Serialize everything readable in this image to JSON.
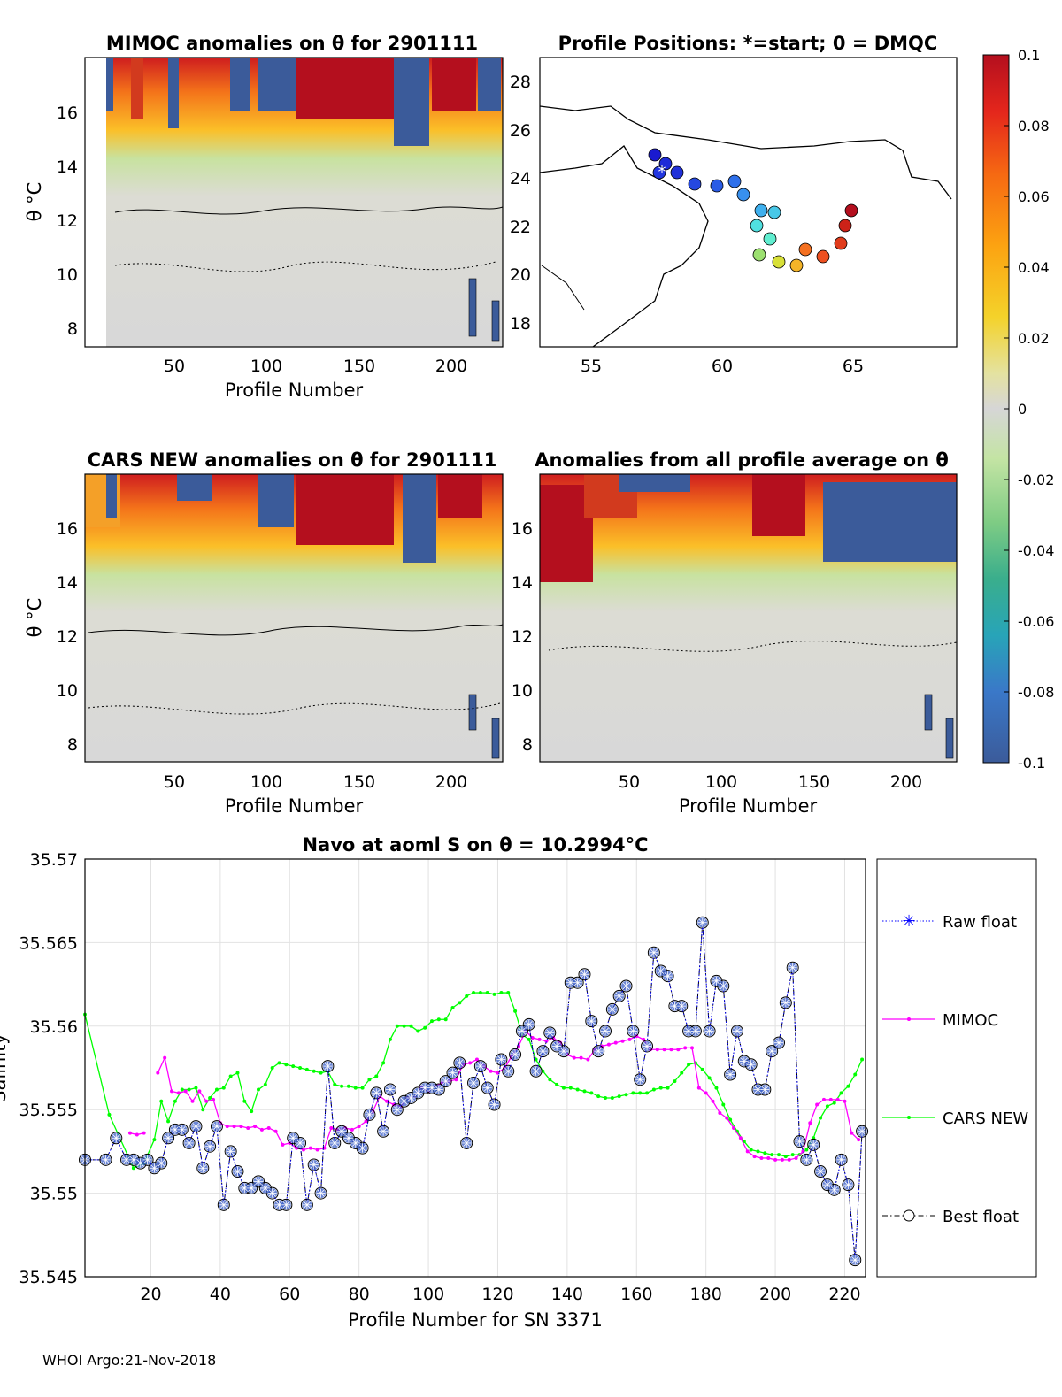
{
  "panels": {
    "mimoc": {
      "title": "MIMOC anomalies on θ  for 2901111",
      "ylabel": "θ °C",
      "xlabel": "Profile Number",
      "xticks": [
        "50",
        "100",
        "150",
        "200"
      ],
      "yticks": [
        "8",
        "10",
        "12",
        "14",
        "16"
      ]
    },
    "positions": {
      "title": "Profile Positions: *=start; 0 = DMQC",
      "xticks": [
        "55",
        "60",
        "65"
      ],
      "yticks": [
        "18",
        "20",
        "22",
        "24",
        "26",
        "28"
      ]
    },
    "cars": {
      "title": "CARS NEW anomalies on θ for 2901111",
      "ylabel": "θ °C",
      "xlabel": "Profile Number",
      "xticks": [
        "50",
        "100",
        "150",
        "200"
      ],
      "yticks": [
        "8",
        "10",
        "12",
        "14",
        "16"
      ]
    },
    "average": {
      "title": "Anomalies from all profile average on θ",
      "xlabel": "Profile Number",
      "xticks": [
        "50",
        "100",
        "150",
        "200"
      ],
      "yticks": [
        "8",
        "10",
        "12",
        "14",
        "16"
      ]
    }
  },
  "colorbar": {
    "ticks": [
      "0.1",
      "0.08",
      "0.06",
      "0.04",
      "0.02",
      "0",
      "-0.02",
      "-0.04",
      "-0.06",
      "-0.08",
      "-0.1"
    ],
    "colors": [
      "#b40f1e",
      "#e4261c",
      "#f66a12",
      "#fca311",
      "#f4d22a",
      "#e4e2a0",
      "#d6d6d6",
      "#c4e4a4",
      "#7fcc84",
      "#3aae8c",
      "#28a4b8",
      "#3a78c8",
      "#3b5b9a"
    ]
  },
  "chart_data": {
    "type": "line",
    "title": "Navo at aoml S on θ = 10.2994°C",
    "xlabel": "Profile Number for SN 3371",
    "ylabel": "Salinity",
    "xlim": [
      1,
      226
    ],
    "ylim": [
      35.545,
      35.57
    ],
    "xticks": [
      "20",
      "40",
      "60",
      "80",
      "100",
      "120",
      "140",
      "160",
      "180",
      "200",
      "220"
    ],
    "yticks": [
      "35.57",
      "35.565",
      "35.56",
      "35.555",
      "35.55",
      "35.545"
    ],
    "grid": true,
    "legend_position": "right",
    "legend": [
      "Raw float",
      "MIMOC",
      "CARS NEW",
      "Best float"
    ],
    "series": [
      {
        "name": "Raw float",
        "color": "#0000ff",
        "x": [
          1,
          7,
          10,
          13,
          15,
          17,
          19,
          21,
          23,
          25,
          27,
          29,
          31,
          33,
          35,
          37,
          39,
          41,
          43,
          45,
          47,
          49,
          51,
          53,
          55,
          57,
          59,
          61,
          63,
          65,
          67,
          69,
          71,
          73,
          75,
          77,
          79,
          81,
          83,
          85,
          87,
          89,
          91,
          93,
          95,
          97,
          99,
          101,
          103,
          105,
          107,
          109,
          111,
          113,
          115,
          117,
          119,
          121,
          123,
          125,
          127,
          129,
          131,
          133,
          135,
          137,
          139,
          141,
          143,
          145,
          147,
          149,
          151,
          153,
          155,
          157,
          159,
          161,
          163,
          165,
          167,
          169,
          171,
          173,
          175,
          177,
          179,
          181,
          183,
          185,
          187,
          189,
          191,
          193,
          195,
          197,
          199,
          201,
          203,
          205,
          207,
          209,
          211,
          213,
          215,
          217,
          219,
          221,
          223,
          225
        ],
        "y": [
          35.552,
          35.552,
          35.5533,
          35.552,
          35.552,
          35.5518,
          35.552,
          35.5515,
          35.5518,
          35.5533,
          35.5538,
          35.5538,
          35.553,
          35.554,
          35.5515,
          35.5528,
          35.554,
          35.5493,
          35.5525,
          35.5513,
          35.5503,
          35.5503,
          35.5507,
          35.5503,
          35.55,
          35.5493,
          35.5493,
          35.5533,
          35.553,
          35.5493,
          35.5517,
          35.55,
          35.5576,
          35.553,
          35.5537,
          35.5533,
          35.553,
          35.5527,
          35.5547,
          35.556,
          35.5537,
          35.5562,
          35.555,
          35.5555,
          35.5557,
          35.556,
          35.5563,
          35.5563,
          35.5562,
          35.5567,
          35.5572,
          35.5578,
          35.553,
          35.5566,
          35.5576,
          35.5563,
          35.5553,
          35.558,
          35.5573,
          35.5583,
          35.5597,
          35.5601,
          35.5573,
          35.5585,
          35.5596,
          35.5588,
          35.5585,
          35.5626,
          35.5626,
          35.5631,
          35.5603,
          35.5585,
          35.5597,
          35.561,
          35.5618,
          35.5624,
          35.5597,
          35.5568,
          35.5588,
          35.5644,
          35.5633,
          35.563,
          35.5612,
          35.5612,
          35.5597,
          35.5597,
          35.5662,
          35.5597,
          35.5627,
          35.5624,
          35.5571,
          35.5597,
          35.5579,
          35.5577,
          35.5562,
          35.5562,
          35.5585,
          35.559,
          35.5614,
          35.5635,
          35.5531,
          35.552,
          35.5529,
          35.5513,
          35.5505,
          35.5502,
          35.552,
          35.5505,
          35.546,
          35.5537
        ]
      },
      {
        "name": "MIMOC",
        "color": "#ff00ff",
        "x": [
          14,
          16,
          18,
          20,
          22,
          24,
          26,
          28,
          30,
          32,
          34,
          36,
          38,
          40,
          42,
          44,
          46,
          48,
          50,
          52,
          54,
          56,
          58,
          60,
          62,
          64,
          66,
          68,
          70,
          72,
          74,
          76,
          78,
          80,
          82,
          84,
          86,
          88,
          90,
          92,
          94,
          96,
          98,
          100,
          102,
          104,
          106,
          108,
          110,
          112,
          114,
          116,
          118,
          120,
          122,
          124,
          126,
          128,
          130,
          132,
          134,
          136,
          138,
          140,
          142,
          144,
          146,
          148,
          150,
          152,
          154,
          156,
          158,
          160,
          162,
          164,
          166,
          168,
          170,
          172,
          174,
          176,
          178,
          180,
          182,
          184,
          186,
          188,
          190,
          192,
          194,
          196,
          198,
          200,
          202,
          204,
          206,
          208,
          210,
          212,
          214,
          216,
          218,
          220,
          222,
          224
        ],
        "y": [
          35.5536,
          35.5535,
          35.5536,
          null,
          35.5572,
          35.5581,
          35.5561,
          35.556,
          35.5561,
          35.5555,
          35.5561,
          35.5555,
          35.5556,
          35.5542,
          35.554,
          35.554,
          35.554,
          35.5539,
          35.554,
          35.5538,
          35.5539,
          35.5537,
          35.5529,
          35.553,
          35.5527,
          35.5526,
          35.5527,
          35.5526,
          35.5527,
          35.5539,
          35.5538,
          35.5539,
          35.5538,
          35.554,
          35.5543,
          35.5549,
          35.5558,
          35.5555,
          35.5553,
          35.5552,
          35.5557,
          35.5558,
          35.5563,
          35.5561,
          35.5564,
          35.5566,
          35.5567,
          35.5568,
          35.5577,
          35.5578,
          35.558,
          35.5576,
          35.5573,
          35.5572,
          35.5575,
          35.5582,
          35.5588,
          35.5597,
          35.5593,
          35.5592,
          35.5591,
          35.5593,
          35.559,
          35.5583,
          35.5581,
          35.5581,
          35.558,
          35.5586,
          35.5588,
          35.5589,
          35.559,
          35.5591,
          35.5592,
          35.5594,
          35.5592,
          35.5586,
          35.5586,
          35.5586,
          35.5586,
          35.5586,
          35.5587,
          35.5587,
          35.5563,
          35.556,
          35.5555,
          35.5548,
          35.5545,
          35.5539,
          35.5533,
          35.5525,
          35.5522,
          35.5521,
          35.5521,
          35.552,
          35.552,
          35.552,
          35.5521,
          35.5525,
          35.5542,
          35.5553,
          35.5556,
          35.5556,
          35.5556,
          35.5555,
          35.5536,
          35.5532
        ]
      },
      {
        "name": "CARS NEW",
        "color": "#00ff00",
        "x": [
          1,
          8,
          15,
          18,
          21,
          23,
          25,
          27,
          29,
          31,
          33,
          35,
          37,
          39,
          41,
          43,
          45,
          47,
          49,
          51,
          53,
          55,
          57,
          59,
          61,
          63,
          65,
          67,
          69,
          71,
          73,
          75,
          77,
          79,
          81,
          83,
          85,
          87,
          89,
          91,
          93,
          95,
          97,
          99,
          101,
          103,
          105,
          107,
          109,
          111,
          113,
          115,
          117,
          119,
          121,
          123,
          125,
          127,
          129,
          131,
          133,
          135,
          137,
          139,
          141,
          143,
          145,
          147,
          149,
          151,
          153,
          155,
          157,
          159,
          161,
          163,
          165,
          167,
          169,
          171,
          173,
          175,
          177,
          179,
          181,
          183,
          185,
          187,
          189,
          191,
          193,
          195,
          197,
          199,
          201,
          203,
          205,
          207,
          209,
          211,
          213,
          215,
          217,
          219,
          221,
          223,
          225
        ],
        "y": [
          35.5607,
          35.5547,
          35.5515,
          35.5518,
          35.5532,
          35.5555,
          35.5543,
          35.5555,
          35.5562,
          35.5562,
          35.5563,
          35.555,
          35.5557,
          35.5562,
          35.5563,
          35.557,
          35.5572,
          35.5555,
          35.5549,
          35.5562,
          35.5565,
          35.5575,
          35.5578,
          35.5577,
          35.5576,
          35.5575,
          35.5574,
          35.5573,
          35.5572,
          35.5573,
          35.5565,
          35.5564,
          35.5564,
          35.5563,
          35.5563,
          35.5568,
          35.557,
          35.5578,
          35.5592,
          35.56,
          35.56,
          35.56,
          35.5597,
          35.5599,
          35.5603,
          35.5604,
          35.5604,
          35.5611,
          35.5614,
          35.5618,
          35.562,
          35.562,
          35.562,
          35.5619,
          35.562,
          35.562,
          35.5609,
          35.5595,
          35.5592,
          35.558,
          35.5573,
          35.5568,
          35.5565,
          35.5563,
          35.5563,
          35.5562,
          35.5561,
          35.556,
          35.5558,
          35.5557,
          35.5557,
          35.5558,
          35.5559,
          35.556,
          35.556,
          35.556,
          35.5562,
          35.5563,
          35.5563,
          35.5567,
          35.5572,
          35.5577,
          35.5578,
          35.5574,
          35.5569,
          35.5563,
          35.5553,
          35.5544,
          35.5537,
          35.5531,
          35.5526,
          35.5525,
          35.5524,
          35.5523,
          35.5523,
          35.5522,
          35.5523,
          35.5523,
          35.5526,
          35.5533,
          35.5545,
          35.5552,
          35.5554,
          35.556,
          35.5564,
          35.5571,
          35.558
        ]
      },
      {
        "name": "Best float",
        "color": "#000000",
        "x": [
          1,
          7,
          10,
          13,
          15,
          17,
          19,
          21,
          23,
          25,
          27,
          29,
          31,
          33,
          35,
          37,
          39,
          41,
          43,
          45,
          47,
          49,
          51,
          53,
          55,
          57,
          59,
          61,
          63,
          65,
          67,
          69,
          71,
          73,
          75,
          77,
          79,
          81,
          83,
          85,
          87,
          89,
          91,
          93,
          95,
          97,
          99,
          101,
          103,
          105,
          107,
          109,
          111,
          113,
          115,
          117,
          119,
          121,
          123,
          125,
          127,
          129,
          131,
          133,
          135,
          137,
          139,
          141,
          143,
          145,
          147,
          149,
          151,
          153,
          155,
          157,
          159,
          161,
          163,
          165,
          167,
          169,
          171,
          173,
          175,
          177,
          179,
          181,
          183,
          185,
          187,
          189,
          191,
          193,
          195,
          197,
          199,
          201,
          203,
          205,
          207,
          209,
          211,
          213,
          215,
          217,
          219,
          221,
          223,
          225
        ],
        "y": [
          35.552,
          35.552,
          35.5533,
          35.552,
          35.552,
          35.5518,
          35.552,
          35.5515,
          35.5518,
          35.5533,
          35.5538,
          35.5538,
          35.553,
          35.554,
          35.5515,
          35.5528,
          35.554,
          35.5493,
          35.5525,
          35.5513,
          35.5503,
          35.5503,
          35.5507,
          35.5503,
          35.55,
          35.5493,
          35.5493,
          35.5533,
          35.553,
          35.5493,
          35.5517,
          35.55,
          35.5576,
          35.553,
          35.5537,
          35.5533,
          35.553,
          35.5527,
          35.5547,
          35.556,
          35.5537,
          35.5562,
          35.555,
          35.5555,
          35.5557,
          35.556,
          35.5563,
          35.5563,
          35.5562,
          35.5567,
          35.5572,
          35.5578,
          35.553,
          35.5566,
          35.5576,
          35.5563,
          35.5553,
          35.558,
          35.5573,
          35.5583,
          35.5597,
          35.5601,
          35.5573,
          35.5585,
          35.5596,
          35.5588,
          35.5585,
          35.5626,
          35.5626,
          35.5631,
          35.5603,
          35.5585,
          35.5597,
          35.561,
          35.5618,
          35.5624,
          35.5597,
          35.5568,
          35.5588,
          35.5644,
          35.5633,
          35.563,
          35.5612,
          35.5612,
          35.5597,
          35.5597,
          35.5662,
          35.5597,
          35.5627,
          35.5624,
          35.5571,
          35.5597,
          35.5579,
          35.5577,
          35.5562,
          35.5562,
          35.5585,
          35.559,
          35.5614,
          35.5635,
          35.5531,
          35.552,
          35.5529,
          35.5513,
          35.5505,
          35.5502,
          35.552,
          35.5505,
          35.546,
          35.5537
        ]
      }
    ]
  },
  "footer": "WHOI Argo:21-Nov-2018"
}
